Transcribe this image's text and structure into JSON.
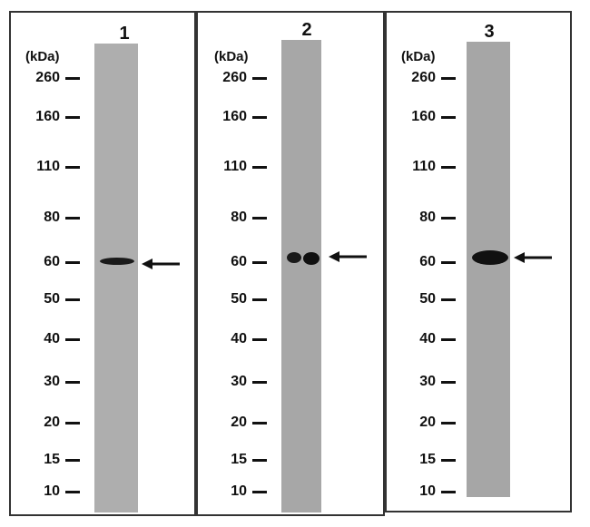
{
  "unit_label": "(kDa)",
  "markers": [
    "260",
    "160",
    "110",
    "80",
    "60",
    "50",
    "40",
    "30",
    "20",
    "15",
    "10"
  ],
  "lanes": [
    {
      "number": "1"
    },
    {
      "number": "2"
    },
    {
      "number": "3"
    }
  ],
  "colors": {
    "lane_gray": "#a9a9a9",
    "band": "#1a1a1a",
    "frame": "#333333"
  },
  "icons": {
    "band_arrow": "arrow-left-icon"
  }
}
